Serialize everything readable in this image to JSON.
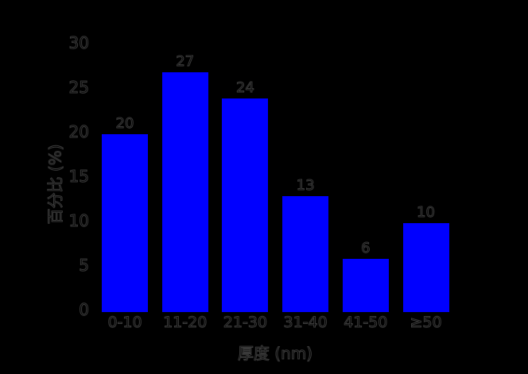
{
  "chart_data": {
    "type": "bar",
    "categories": [
      "0-10",
      "11-20",
      "21-30",
      "31-40",
      "41-50",
      "≥50"
    ],
    "values": [
      20,
      27,
      24,
      13,
      6,
      10
    ],
    "value_labels_shown": true,
    "title": "",
    "xlabel": "厚度 (nm)",
    "ylabel": "百分比 (%)",
    "ylim": [
      0,
      30
    ],
    "yticks": [
      0,
      5,
      10,
      15,
      20,
      25,
      30
    ],
    "grid": false,
    "legend_position": "none",
    "bar_color": "#0000ff",
    "background_color": "#000000",
    "text_color": "#000000"
  }
}
